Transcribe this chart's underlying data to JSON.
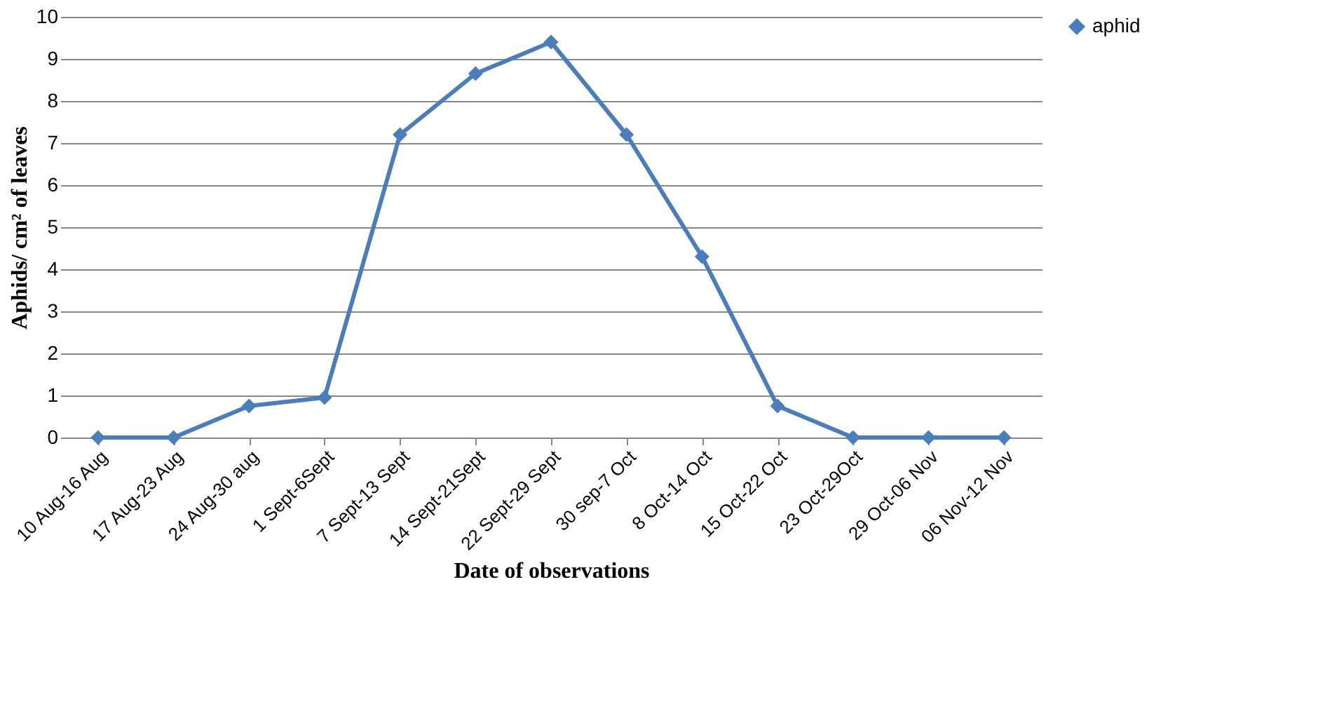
{
  "chart_data": {
    "type": "line",
    "xlabel": "Date of observations",
    "ylabel": "Aphids/ cm² of leaves",
    "categories": [
      "10 Aug-16 Aug",
      "17 Aug-23 Aug",
      "24 Aug-30 aug",
      "1 Sept-6Sept",
      "7 Sept-13 Sept",
      "14 Sept-21Sept",
      "22 Sept-29 Sept",
      "30 sep-7 Oct",
      "8 Oct-14 Oct",
      "15 Oct-22 Oct",
      "23 Oct-29Oct",
      "29 Oct-06 Nov",
      "06 Nov-12 Nov"
    ],
    "series": [
      {
        "name": "aphid",
        "color": "#4a7ebb",
        "values": [
          0,
          0,
          0.75,
          0.95,
          7.2,
          8.65,
          9.4,
          7.2,
          4.3,
          0.75,
          0,
          0,
          0
        ]
      }
    ],
    "ylim": [
      0,
      10
    ],
    "yticks": [
      0,
      1,
      2,
      3,
      4,
      5,
      6,
      7,
      8,
      9,
      10
    ],
    "grid": "y",
    "legend": "right",
    "marker": "diamond",
    "line_style": "solid"
  }
}
